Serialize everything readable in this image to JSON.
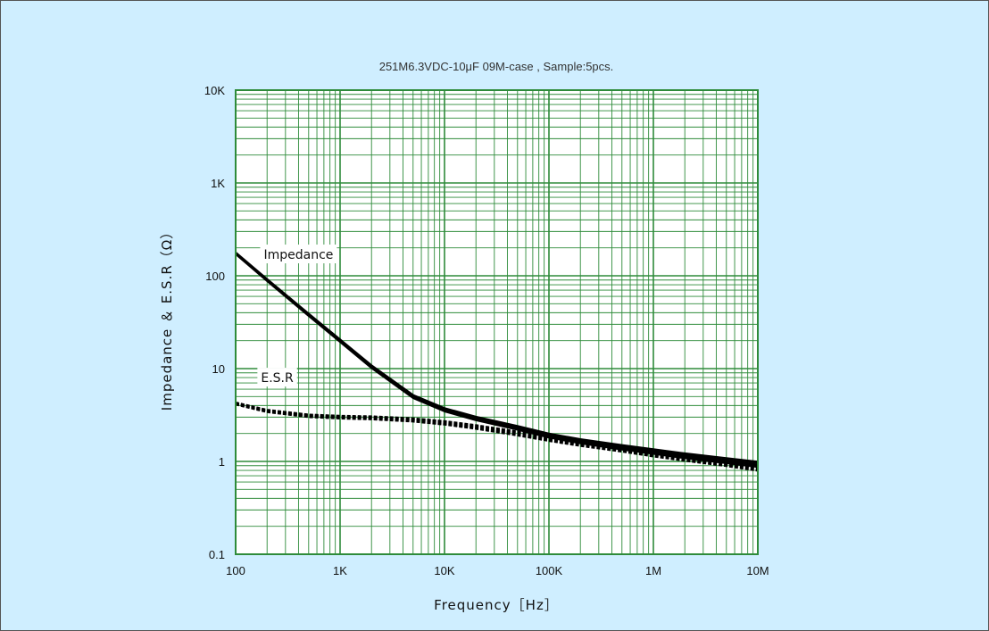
{
  "chart_data": {
    "type": "line",
    "title": "251M6.3VDC-10μF 09M-case , Sample:5pcs.",
    "xlabel": "Frequency［Hz］",
    "ylabel": "Impedance ＆ E.S.R（Ω）",
    "x_scale": "log",
    "y_scale": "log",
    "xlim": [
      100,
      10000000
    ],
    "ylim": [
      0.1,
      10000
    ],
    "grid": true,
    "colors": {
      "background": "#cfeeff",
      "plot_area": "#ffffff",
      "grid": "#2e8b3a",
      "series": "#000000"
    },
    "x_ticks": [
      {
        "value": 100,
        "label": "100"
      },
      {
        "value": 1000,
        "label": "1K"
      },
      {
        "value": 10000,
        "label": "10K"
      },
      {
        "value": 100000,
        "label": "100K"
      },
      {
        "value": 1000000,
        "label": "1M"
      },
      {
        "value": 10000000,
        "label": "10M"
      }
    ],
    "y_ticks": [
      {
        "value": 0.1,
        "label": "0.1"
      },
      {
        "value": 1,
        "label": "1"
      },
      {
        "value": 10,
        "label": "10"
      },
      {
        "value": 100,
        "label": "100"
      },
      {
        "value": 1000,
        "label": "1K"
      },
      {
        "value": 10000,
        "label": "10K"
      }
    ],
    "annotations": [
      {
        "text": "Impedance",
        "x": 400,
        "y": 170
      },
      {
        "text": "E.S.R",
        "x": 250,
        "y": 8
      }
    ],
    "series": [
      {
        "style": "solid",
        "x": [
          100,
          200,
          500,
          1000,
          2000,
          5000,
          10000,
          20000,
          50000,
          100000,
          200000,
          500000,
          1000000,
          2000000,
          5000000,
          10000000
        ],
        "y": [
          175,
          90,
          38,
          20,
          10.5,
          5,
          3.6,
          2.9,
          2.3,
          1.9,
          1.65,
          1.42,
          1.28,
          1.15,
          1.02,
          0.93
        ]
      },
      {
        "style": "dashed",
        "x": [
          100,
          200,
          500,
          1000,
          2000,
          5000,
          10000,
          20000,
          50000,
          100000,
          200000,
          500000,
          1000000,
          2000000,
          5000000,
          10000000
        ],
        "y": [
          4.2,
          3.5,
          3.1,
          3.0,
          2.95,
          2.8,
          2.6,
          2.35,
          2.0,
          1.75,
          1.55,
          1.35,
          1.2,
          1.08,
          0.95,
          0.85
        ]
      }
    ]
  }
}
